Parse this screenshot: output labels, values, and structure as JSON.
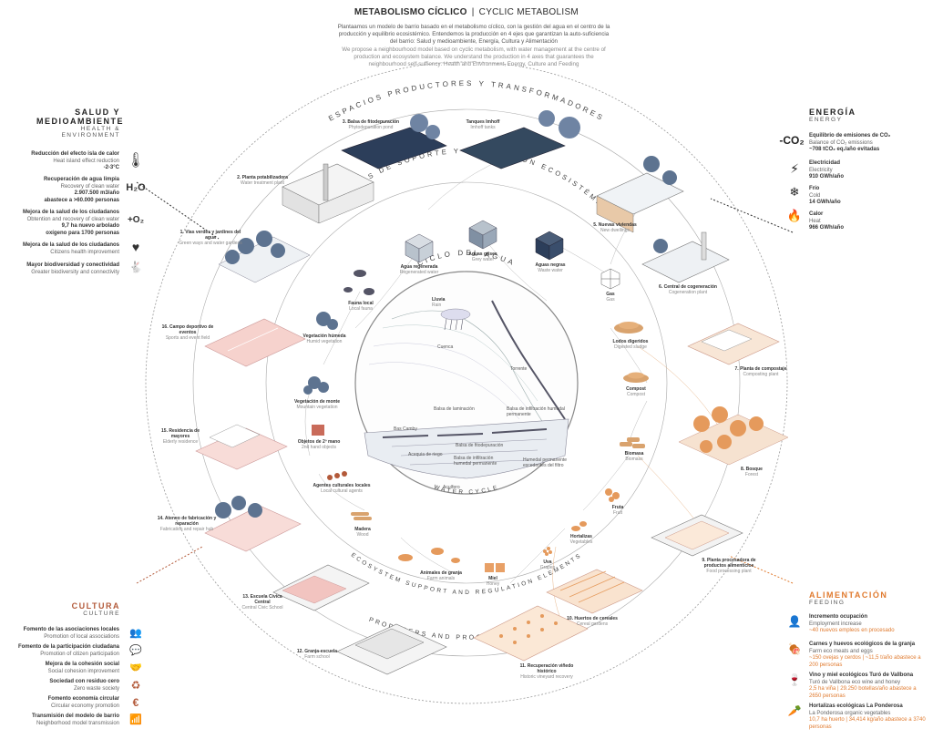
{
  "header": {
    "title_es": "METABOLISMO CÍCLICO",
    "title_sep": "|",
    "title_en": "CYCLIC METABOLISM",
    "intro_es": "Plantaamos un modelo de barrio basado en el metabolismo cíclico, con la gestión del agua en el centro de la producción y equilibrio ecosistémico. Entendemos la producción en 4 ejes que garantizan la auto-suficiencia del barrio: Salud y medioambiente, Energía, Cultura y Alimentación",
    "intro_en": "We propose a neighbourhood model based on cyclic metabolism, with water management at the centre of production and ecosystem balance. We understand the production in 4 axes that guarantees the neighbourhood self-suffiency: Health and Environment, Energy, Culture and Feeding"
  },
  "rings": {
    "outer_top": "ESPACIOS PRODUCTORES Y TRANSFORMADORES",
    "outer_bottom": "PRODUCERS AND PROCESSORS SPACES",
    "middle_top": "ELEMENTOS DE SOPORTE Y REGULACIÓN ECOSISTÉMICA",
    "middle_bottom": "ECOSYSTEM SUPPORT AND REGULATION ELEMENTS",
    "inner_top": "CICLO DEL AGUA",
    "inner_bottom": "WATER CYCLE"
  },
  "salud": {
    "title_line1": "SALUD Y",
    "title_line2": "MEDIOAMBIENTE",
    "sub_line1": "HEALTH &",
    "sub_line2": "ENVIRONMENT",
    "items": [
      {
        "es": "Reducción del efecto isla de calor",
        "en": "Heat island effect reduction",
        "v": "-2-3°C",
        "icon": "thermometer-icon",
        "glyph": "🌡"
      },
      {
        "es": "Recuperación de agua limpia",
        "en": "Recovery of clean water",
        "v": "2.907.500 m3/año",
        "v2": "abastece a >60.000 personas",
        "icon": "water-h2o-icon",
        "glyph": "H₂O"
      },
      {
        "es": "Mejora de la salud de los ciudadanos",
        "en": "Obtention and recovery of clean water",
        "v": "9,7 ha nuevo arbolado",
        "v2": "oxígeno para 1700 personas",
        "icon": "oxygen-o2-icon",
        "glyph": "+O₂"
      },
      {
        "es": "Mejora de la salud de los ciudadanos",
        "en": "Citizens health improvement",
        "icon": "heart-plus-icon",
        "glyph": "♥"
      },
      {
        "es": "Mayor biodiversidad y conectividad",
        "en": "Greater biodiversity and connectivity",
        "icon": "animals-icon",
        "glyph": "🐇"
      }
    ]
  },
  "energia": {
    "title": "ENERGÍA",
    "sub": "ENERGY",
    "items": [
      {
        "es": "Equilibrio de emisiones de CO₂",
        "en": "Balance of CO₂ emissions",
        "v": "~708 tCO₂ eq./año evitadas",
        "icon": "co2-reduction-icon",
        "glyph": "-CO₂"
      },
      {
        "es": "Electricidad",
        "en": "Electricity",
        "v": "910 GWh/año",
        "icon": "lightning-icon",
        "glyph": "⚡"
      },
      {
        "es": "Frío",
        "en": "Cold",
        "v": "14 GWh/año",
        "icon": "snowflake-icon",
        "glyph": "❄"
      },
      {
        "es": "Calor",
        "en": "Heat",
        "v": "966 GWh/año",
        "icon": "flame-icon",
        "glyph": "🔥"
      }
    ]
  },
  "cultura": {
    "title": "CULTURA",
    "sub": "CULTURE",
    "items": [
      {
        "es": "Fomento de las asociaciones locales",
        "en": "Promotion of local associations",
        "icon": "people-icon",
        "glyph": "👥"
      },
      {
        "es": "Fomento de la participación ciudadana",
        "en": "Promotion of citizen participation",
        "icon": "speech-bubble-icon",
        "glyph": "💬"
      },
      {
        "es": "Mejora de la cohesión social",
        "en": "Social cohesion improvement",
        "icon": "handshake-icon",
        "glyph": "🤝"
      },
      {
        "es": "Sociedad con residuo cero",
        "en": "Zero waste society",
        "icon": "recycle-icon",
        "glyph": "♻"
      },
      {
        "es": "Fomento economía circular",
        "en": "Circular economy promotion",
        "icon": "euro-cycle-icon",
        "glyph": "€"
      },
      {
        "es": "Transmisión del modelo de barrio",
        "en": "Neighborhood model transmission",
        "icon": "broadcast-icon",
        "glyph": "📶"
      }
    ]
  },
  "alimentacion": {
    "title": "ALIMENTACIÓN",
    "sub": "FEEDING",
    "items": [
      {
        "es": "Incremento ocupación",
        "en": "Employment increase",
        "v": "~40 nuevos empleos en procesado",
        "icon": "worker-icon",
        "glyph": "👤"
      },
      {
        "es": "Carnes y huevos ecológicos de la granja",
        "en": "Farm eco meats and eggs",
        "v": "~150 ovejas y cerdos | ~11,5 t/año abastece a 200 personas",
        "icon": "meat-icon",
        "glyph": "🍖"
      },
      {
        "es": "Vino y miel ecológicos Turó de Vallbona",
        "en": "Turó de Vallbona eco wine and honey",
        "v": "2,5 ha viña | 29.250 botellas/año abastece a 2650 personas",
        "icon": "wine-bottle-icon",
        "glyph": "🍷"
      },
      {
        "es": "Hortalizas ecológicas La Ponderosa",
        "en": "La Ponderosa organic vegetables",
        "v": "10,7 ha huerto | 34,414 kg/año abastece a 3740 personas",
        "icon": "vegetables-icon",
        "glyph": "🥕"
      }
    ]
  },
  "spaces": [
    {
      "id": "s1",
      "es": "1. Vías verdes y jardines del agua",
      "en": "Green ways and water gardens"
    },
    {
      "id": "s2",
      "es": "2. Planta potabilizadora",
      "en": "Water treatment plant"
    },
    {
      "id": "s3",
      "es": "3. Balsa de fitodepuración",
      "en": "Phytodepuration pond"
    },
    {
      "id": "s4",
      "es": "Tanques Imhoff",
      "en": "Imhoff tanks"
    },
    {
      "id": "s5",
      "es": "5. Nuevas viviendas",
      "en": "New dwellings"
    },
    {
      "id": "s6",
      "es": "6. Central de cogeneración",
      "en": "Cogeneration plant"
    },
    {
      "id": "s7",
      "es": "7. Planta de compostaje",
      "en": "Composting plant"
    },
    {
      "id": "s8",
      "es": "8. Bosque",
      "en": "Forest"
    },
    {
      "id": "s9",
      "es": "9. Planta procesadora de productos alimenticios",
      "en": "Food processing plant"
    },
    {
      "id": "s10",
      "es": "10. Huertos de cereales",
      "en": "Cereal gardens"
    },
    {
      "id": "s11",
      "es": "11. Recuperación viñedo histórico",
      "en": "Historic vineyard recovery"
    },
    {
      "id": "s12",
      "es": "12. Granja-escuela",
      "en": "Farm school"
    },
    {
      "id": "s13",
      "es": "13. Escuela Cívica Central",
      "en": "Central Civic School"
    },
    {
      "id": "s14",
      "es": "14. Ateneo de fabricación y reparación",
      "en": "Fabrication and repair hub"
    },
    {
      "id": "s15",
      "es": "15. Residencia de mayores",
      "en": "Elderly residence"
    },
    {
      "id": "s16",
      "es": "16. Campo deportivo de eventos",
      "en": "Sports and event field"
    }
  ],
  "elements": [
    {
      "es": "Agua regenerada",
      "en": "Regenerated water"
    },
    {
      "es": "Aguas grises",
      "en": "Grey water"
    },
    {
      "es": "Aguas negras",
      "en": "Waste water"
    },
    {
      "es": "Gas",
      "en": "Gas"
    },
    {
      "es": "Lodos digeridos",
      "en": "Digested sludge"
    },
    {
      "es": "Compost",
      "en": "Compost"
    },
    {
      "es": "Biomasa",
      "en": "Biomass"
    },
    {
      "es": "Fruta",
      "en": "Fruit"
    },
    {
      "es": "Hortalizas",
      "en": "Vegetables"
    },
    {
      "es": "Uva",
      "en": "Grapes"
    },
    {
      "es": "Miel",
      "en": "Honey"
    },
    {
      "es": "Animales de granja",
      "en": "Farm animals"
    },
    {
      "es": "Madera",
      "en": "Wood"
    },
    {
      "es": "Agentes culturales locales",
      "en": "Local cultural agents"
    },
    {
      "es": "Objetos de 2º mano",
      "en": "2nd hand objects"
    },
    {
      "es": "Vegetación de monte",
      "en": "Mountain vegetation"
    },
    {
      "es": "Vegetación húmeda",
      "en": "Humid vegetation"
    },
    {
      "es": "Fauna local",
      "en": "Local fauna"
    }
  ],
  "water_cycle": {
    "lluvia": "Lluvia",
    "rain": "Rain",
    "cuenca": "Cuenca",
    "torrente": "Torrente",
    "balsa_laminacion": "Balsa de laminación",
    "balsa_infiltracion": "Balsa de infiltración humedal permanente",
    "balsa_fitodepuracion": "Balsa de fitodepuración",
    "balsa_filtracion": "Balsa de infiltración humedal permanente",
    "humedal": "Humedal permanente excedentes del filtro",
    "acequia": "Acequia de riego",
    "bas": "Bas Camby",
    "acuifero": "Acuífero"
  },
  "colors": {
    "orange": "#e07a2e",
    "navy": "#2c3e5a",
    "pink": "#f2c4c0",
    "grey": "#8a8a8a"
  }
}
